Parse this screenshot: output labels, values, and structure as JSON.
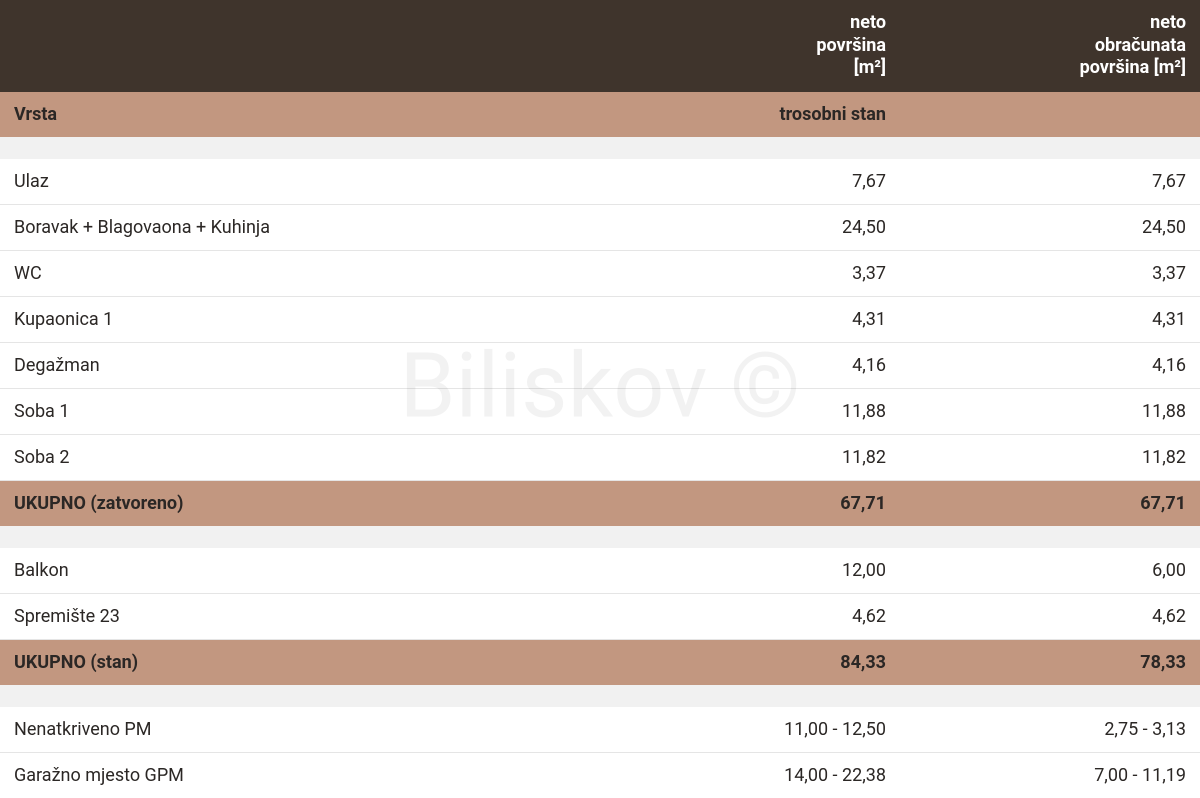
{
  "watermark": "Biliskov ©",
  "colors": {
    "header_bg": "#3f342c",
    "header_text": "#ffffff",
    "section_bg": "#c29780",
    "spacer_bg": "#f1f1f1",
    "row_bg": "#ffffff",
    "row_border": "#e5e5e5",
    "text": "#2b2725"
  },
  "columns": [
    {
      "key": "label",
      "header": "",
      "align": "left",
      "width": "50%"
    },
    {
      "key": "neto",
      "header": "neto\npovršina\n[m²]",
      "align": "right",
      "width": "25%"
    },
    {
      "key": "obr",
      "header": "neto\nobračunata\npovršina [m²]",
      "align": "right",
      "width": "25%"
    }
  ],
  "rows": [
    {
      "kind": "section",
      "label": "Vrsta",
      "neto": "trosobni stan",
      "obr": ""
    },
    {
      "kind": "spacer"
    },
    {
      "kind": "data",
      "label": "Ulaz",
      "neto": "7,67",
      "obr": "7,67"
    },
    {
      "kind": "data",
      "label": "Boravak + Blagovaona + Kuhinja",
      "neto": "24,50",
      "obr": "24,50"
    },
    {
      "kind": "data",
      "label": "WC",
      "neto": "3,37",
      "obr": "3,37"
    },
    {
      "kind": "data",
      "label": "Kupaonica 1",
      "neto": "4,31",
      "obr": "4,31"
    },
    {
      "kind": "data",
      "label": "Degažman",
      "neto": "4,16",
      "obr": "4,16"
    },
    {
      "kind": "data",
      "label": "Soba 1",
      "neto": "11,88",
      "obr": "11,88"
    },
    {
      "kind": "data",
      "label": "Soba 2",
      "neto": "11,82",
      "obr": "11,82"
    },
    {
      "kind": "subtotal",
      "label": "UKUPNO (zatvoreno)",
      "neto": "67,71",
      "obr": "67,71"
    },
    {
      "kind": "spacer"
    },
    {
      "kind": "data",
      "label": "Balkon",
      "neto": "12,00",
      "obr": "6,00"
    },
    {
      "kind": "data",
      "label": "Spremište 23",
      "neto": "4,62",
      "obr": "4,62"
    },
    {
      "kind": "subtotal",
      "label": "UKUPNO (stan)",
      "neto": "84,33",
      "obr": "78,33"
    },
    {
      "kind": "spacer"
    },
    {
      "kind": "data",
      "label": "Nenatkriveno PM",
      "neto": "11,00 - 12,50",
      "obr": "2,75 - 3,13"
    },
    {
      "kind": "data",
      "label": "Garažno mjesto GPM",
      "neto": "14,00 - 22,38",
      "obr": "7,00 - 11,19"
    }
  ]
}
